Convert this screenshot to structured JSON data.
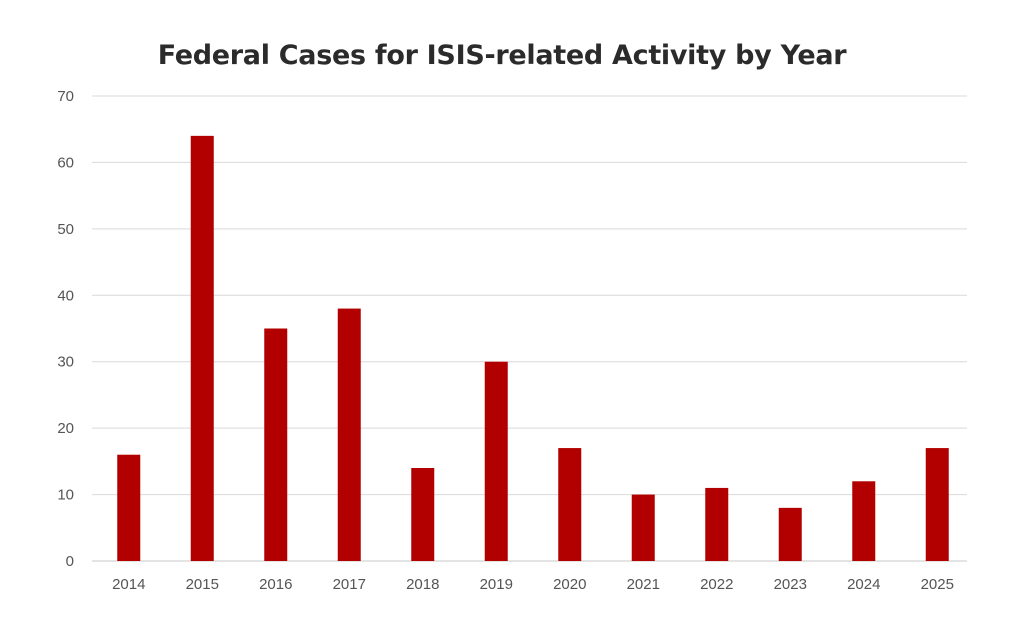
{
  "chart_data": {
    "type": "bar",
    "title": "Federal Cases for ISIS-related Activity by Year",
    "categories": [
      "2014",
      "2015",
      "2016",
      "2017",
      "2018",
      "2019",
      "2020",
      "2021",
      "2022",
      "2023",
      "2024",
      "2025"
    ],
    "values": [
      16,
      64,
      35,
      38,
      14,
      30,
      17,
      10,
      11,
      8,
      12,
      17
    ],
    "ylim": [
      0,
      70
    ],
    "yticks": [
      0,
      10,
      20,
      30,
      40,
      50,
      60,
      70
    ],
    "grid": true,
    "bar_color": "#b20000"
  }
}
